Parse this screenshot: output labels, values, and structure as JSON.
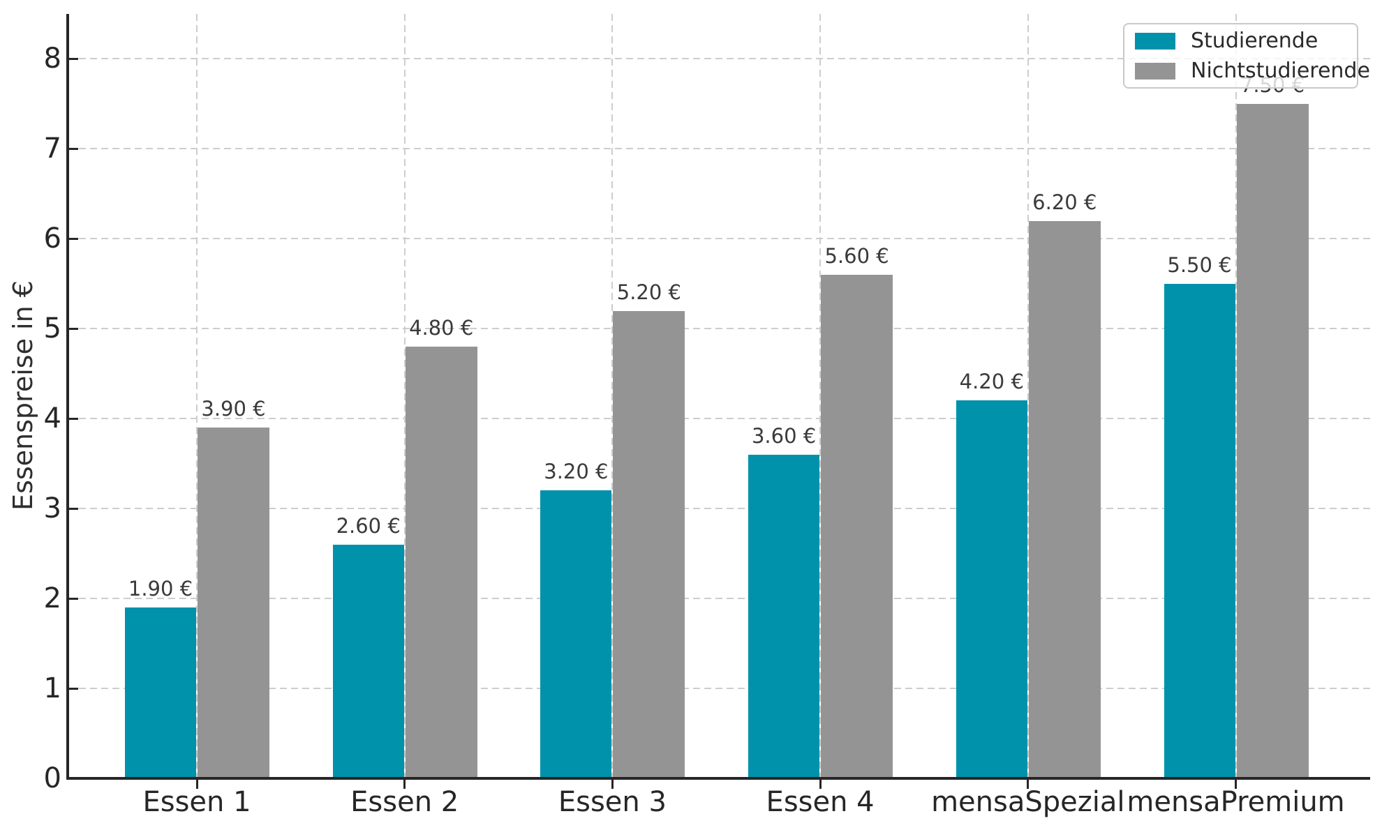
{
  "chart_data": {
    "type": "bar",
    "title": "",
    "xlabel": "",
    "ylabel": "Essenspreise in €",
    "categories": [
      "Essen 1",
      "Essen 2",
      "Essen 3",
      "Essen 4",
      "mensaSpezial",
      "mensaPremium"
    ],
    "series": [
      {
        "name": "Studierende",
        "color": "#0091ab",
        "values": [
          1.9,
          2.6,
          3.2,
          3.6,
          4.2,
          5.5
        ],
        "value_labels": [
          "1.90 €",
          "2.60 €",
          "3.20 €",
          "3.60 €",
          "4.20 €",
          "5.50 €"
        ]
      },
      {
        "name": "Nichtstudierende",
        "color": "#949494",
        "values": [
          3.9,
          4.8,
          5.2,
          5.6,
          6.2,
          7.5
        ],
        "value_labels": [
          "3.90 €",
          "4.80 €",
          "5.20 €",
          "5.60 €",
          "6.20 €",
          "7.50 €"
        ]
      }
    ],
    "ylim": [
      0,
      8.5
    ],
    "yticks": [
      0,
      1,
      2,
      3,
      4,
      5,
      6,
      7,
      8
    ],
    "ytick_labels": [
      "0",
      "1",
      "2",
      "3",
      "4",
      "5",
      "6",
      "7",
      "8"
    ],
    "grid": true,
    "grid_style": "dashed",
    "legend_position": "upper right"
  },
  "colors": {
    "studierende": "#0091ab",
    "nichtstudierende": "#949494",
    "grid": "#cdcdcd",
    "axis": "#262626",
    "value_label_text": "#3a3a3a",
    "legend_border": "#c9c9c9"
  }
}
